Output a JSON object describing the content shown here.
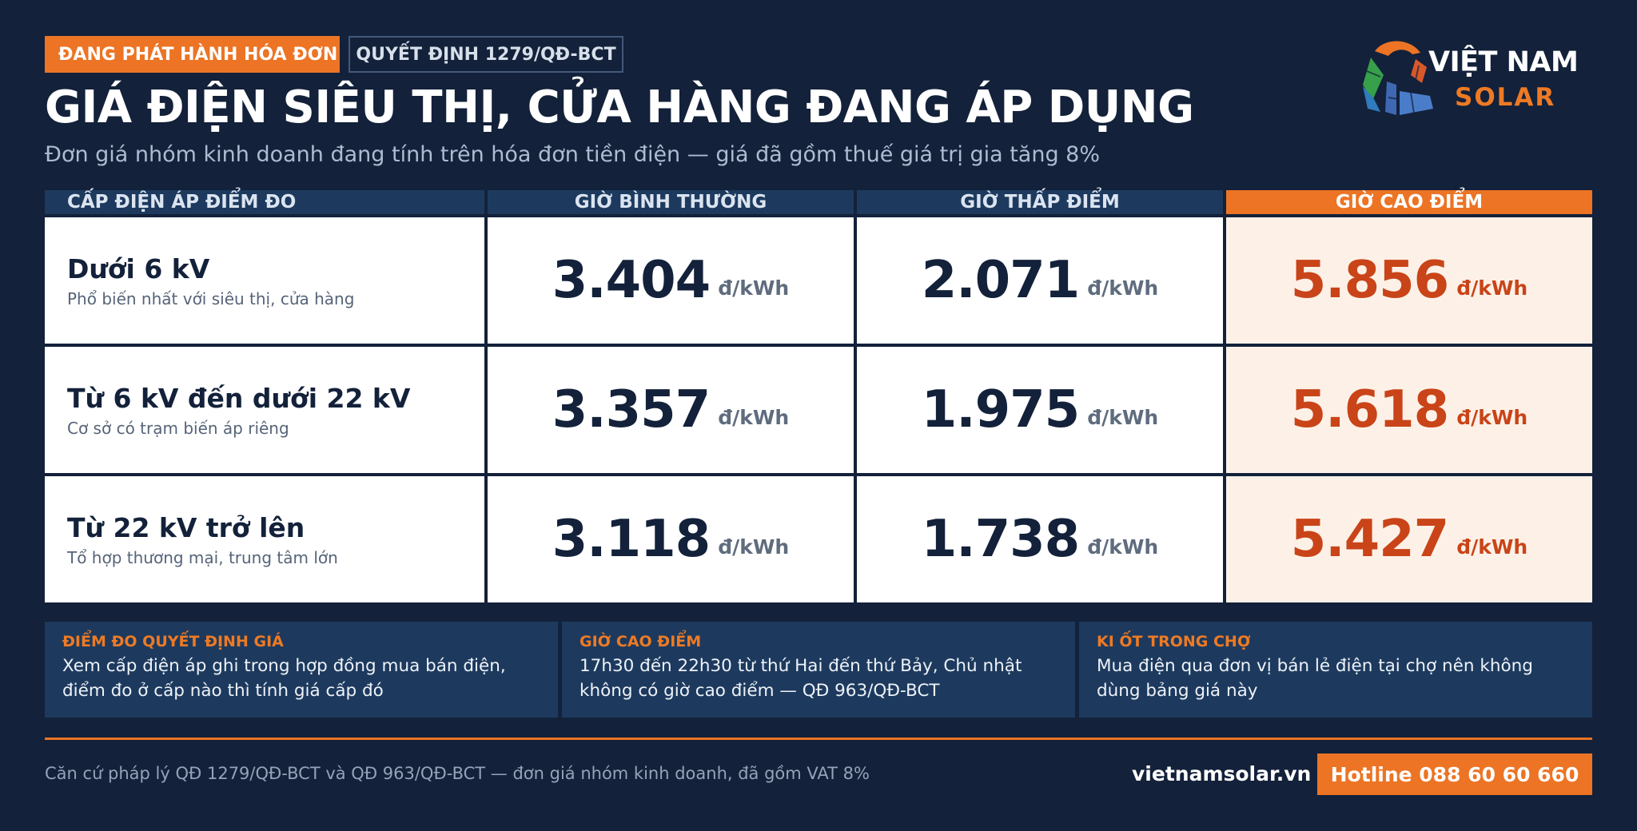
{
  "header": {
    "badge_status": "ĐANG PHÁT HÀNH HÓA ĐƠN",
    "badge_decision": "QUYẾT ĐỊNH 1279/QĐ-BCT",
    "title": "GIÁ ĐIỆN SIÊU THỊ, CỬA HÀNG ĐANG ÁP DỤNG",
    "subtitle": "Đơn giá nhóm kinh doanh đang tính trên hóa đơn tiền điện — giá đã gồm thuế giá trị gia tăng 8%"
  },
  "logo": {
    "line1": "VIỆT NAM",
    "line2": "SOLAR",
    "icon": "solar-panel-logo-icon"
  },
  "table": {
    "headers": [
      "CẤP ĐIỆN ÁP ĐIỂM ĐO",
      "GIỜ BÌNH THƯỜNG",
      "GIỜ THẤP ĐIỂM",
      "GIỜ CAO ĐIỂM"
    ],
    "unit": "đ/kWh",
    "rows": [
      {
        "label": "Dưới 6 kV",
        "sub": "Phổ biến nhất với siêu thị, cửa hàng",
        "normal": "3.404",
        "off_peak": "2.071",
        "peak": "5.856"
      },
      {
        "label": "Từ 6 kV đến dưới 22 kV",
        "sub": "Cơ sở có trạm biến áp riêng",
        "normal": "3.357",
        "off_peak": "1.975",
        "peak": "5.618"
      },
      {
        "label": "Từ 22 kV trở lên",
        "sub": "Tổ hợp thương mại, trung tâm lớn",
        "normal": "3.118",
        "off_peak": "1.738",
        "peak": "5.427"
      }
    ]
  },
  "notes": [
    {
      "title": "ĐIỂM ĐO QUYẾT ĐỊNH GIÁ",
      "text": "Xem cấp điện áp ghi trong hợp đồng mua bán điện, điểm đo ở cấp nào thì tính giá cấp đó"
    },
    {
      "title": "GIỜ CAO ĐIỂM",
      "text": "17h30 đến 22h30 từ thứ Hai đến thứ Bảy, Chủ nhật không có giờ cao điểm — QĐ 963/QĐ-BCT"
    },
    {
      "title": "KI ỐT TRONG CHỢ",
      "text": "Mua điện qua đơn vị bán lẻ điện tại chợ nên không dùng bảng giá này"
    }
  ],
  "footer": {
    "legal": "Căn cứ pháp lý QĐ 1279/QĐ-BCT và QĐ 963/QĐ-BCT — đơn giá nhóm kinh doanh, đã gồm VAT 8%",
    "site": "vietnamsolar.vn",
    "hotline": "Hotline 088 60 60 660"
  },
  "colors": {
    "background": "#13213a",
    "accent": "#ec7424",
    "peak_text": "#c94418",
    "panel": "#1d3a5e"
  }
}
